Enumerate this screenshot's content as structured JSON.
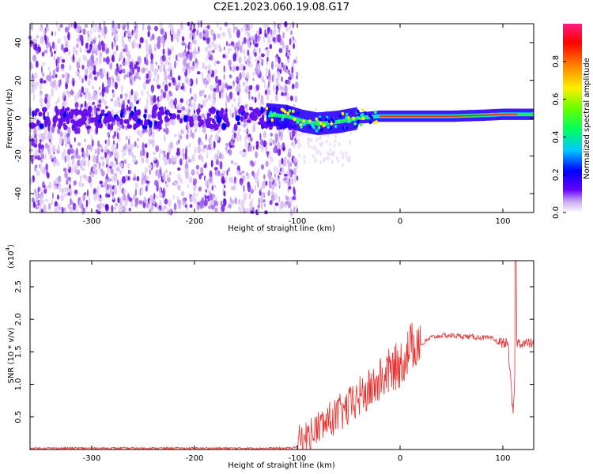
{
  "title": "C2E1.2023.060.19.08.G17",
  "chart_data": [
    {
      "type": "heatmap",
      "xlabel": "Height of straight line (km)",
      "ylabel": "Frequency (Hz)",
      "xlim": [
        -360,
        130
      ],
      "ylim": [
        -50,
        50
      ],
      "xticks": [
        -300,
        -200,
        -100,
        0,
        100
      ],
      "yticks": [
        -40,
        -20,
        0,
        20,
        40
      ],
      "colorbar": {
        "label": "Normalized spectral amplitude",
        "range": [
          0.0,
          1.0
        ],
        "ticks": [
          0.0,
          0.2,
          0.4,
          0.6,
          0.8
        ]
      },
      "signal_track": [
        {
          "x": -130,
          "y": 2.0
        },
        {
          "x": -110,
          "y": 1.0
        },
        {
          "x": -95,
          "y": -1.5
        },
        {
          "x": -80,
          "y": -3.0
        },
        {
          "x": -60,
          "y": -2.0
        },
        {
          "x": -40,
          "y": 0.0
        },
        {
          "x": -20,
          "y": 1.0
        },
        {
          "x": 0,
          "y": 1.0
        },
        {
          "x": 20,
          "y": 1.0
        },
        {
          "x": 50,
          "y": 1.0
        },
        {
          "x": 80,
          "y": 1.5
        },
        {
          "x": 100,
          "y": 2.0
        },
        {
          "x": 130,
          "y": 2.0
        }
      ],
      "noise_cutoff_x": -100
    },
    {
      "type": "line",
      "xlabel": "Height of straight line (km)",
      "ylabel": "SNR (10 * v/v)",
      "yscale_label": "(x10",
      "yscale_exp": "4",
      "xlim": [
        -360,
        130
      ],
      "ylim": [
        0,
        2.9
      ],
      "xticks": [
        -300,
        -200,
        -100,
        0,
        100
      ],
      "yticks": [
        0.5,
        1.0,
        1.5,
        2.0,
        2.5
      ],
      "ytick_labels": [
        "0.5",
        "1.0",
        "1.5",
        "2.0",
        "2.5"
      ],
      "series": [
        {
          "color": "#e8312f",
          "x": [
            -360,
            -300,
            -200,
            -110,
            -100,
            -90,
            -80,
            -70,
            -60,
            -50,
            -40,
            -30,
            -20,
            -10,
            0,
            10,
            20,
            30,
            40,
            50,
            60,
            70,
            80,
            90,
            95,
            100,
            105,
            110,
            113,
            120,
            130
          ],
          "y": [
            0.02,
            0.02,
            0.02,
            0.02,
            0.04,
            0.12,
            0.25,
            0.35,
            0.45,
            0.55,
            0.7,
            0.8,
            0.95,
            1.1,
            1.2,
            1.45,
            1.6,
            1.72,
            1.75,
            1.75,
            1.74,
            1.73,
            1.72,
            1.7,
            1.65,
            1.64,
            1.63,
            0.5,
            1.65,
            1.63,
            1.63
          ]
        }
      ]
    }
  ]
}
